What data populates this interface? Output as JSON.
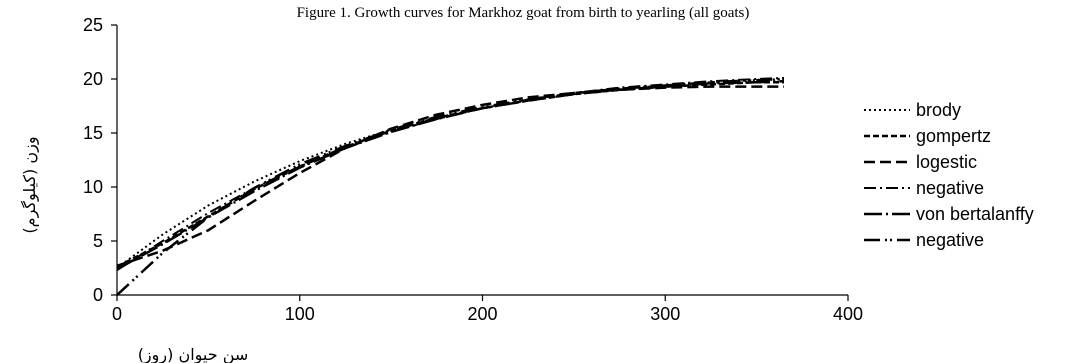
{
  "chart_data": {
    "type": "line",
    "title": "Figure 1. Growth curves for Markhoz goat from birth to yearling (all goats)",
    "xlabel": "سن حیوان (روز)",
    "ylabel": "وزن (کیلوگرم)",
    "xlim": [
      0,
      400
    ],
    "ylim": [
      0,
      25
    ],
    "xticks": [
      0,
      100,
      200,
      300,
      400
    ],
    "yticks": [
      0,
      5,
      10,
      15,
      20,
      25
    ],
    "xtick_labels": [
      "0",
      "100",
      "200",
      "300",
      "400"
    ],
    "ytick_labels": [
      "0",
      "5",
      "10",
      "15",
      "20",
      "25"
    ],
    "grid": false,
    "legend_position": "right",
    "x": [
      0,
      25,
      50,
      75,
      100,
      125,
      150,
      175,
      200,
      225,
      250,
      275,
      300,
      325,
      350,
      365
    ],
    "series": [
      {
        "name": "brody",
        "dash": "2,3",
        "width": 2,
        "values": [
          2.5,
          5.6,
          8.3,
          10.5,
          12.4,
          14.0,
          15.3,
          16.4,
          17.3,
          18.0,
          18.6,
          19.1,
          19.4,
          19.7,
          19.9,
          20.0
        ]
      },
      {
        "name": "gompertz",
        "dash": "6,3",
        "width": 2.5,
        "values": [
          2.6,
          4.8,
          7.3,
          9.8,
          11.9,
          13.7,
          15.2,
          16.4,
          17.3,
          18.0,
          18.6,
          19.0,
          19.3,
          19.5,
          19.7,
          19.7
        ]
      },
      {
        "name": "logestic",
        "dash": "11,5",
        "width": 2.5,
        "values": [
          2.7,
          4.1,
          6.0,
          8.7,
          11.3,
          13.6,
          15.4,
          16.7,
          17.6,
          18.3,
          18.7,
          19.0,
          19.2,
          19.3,
          19.3,
          19.3
        ]
      },
      {
        "name": "negative",
        "dash": "12,4,2,4",
        "width": 2,
        "values": [
          2.3,
          5.0,
          7.6,
          9.9,
          11.9,
          13.6,
          15.1,
          16.3,
          17.3,
          18.1,
          18.7,
          19.2,
          19.5,
          19.8,
          20.0,
          20.1
        ]
      },
      {
        "name": "von bertalanffy",
        "dash": "18,4,2,4",
        "width": 2.5,
        "values": [
          2.4,
          4.7,
          7.2,
          9.6,
          11.8,
          13.6,
          15.1,
          16.3,
          17.3,
          18.0,
          18.6,
          19.0,
          19.3,
          19.6,
          19.7,
          19.8
        ]
      },
      {
        "name": "negative",
        "dash": "16,5,2,3,2,5",
        "width": 2.5,
        "values": [
          0.0,
          3.9,
          7.2,
          9.9,
          12.1,
          13.8,
          15.3,
          16.5,
          17.4,
          18.1,
          18.7,
          19.1,
          19.4,
          19.7,
          19.9,
          20.0
        ]
      }
    ]
  }
}
